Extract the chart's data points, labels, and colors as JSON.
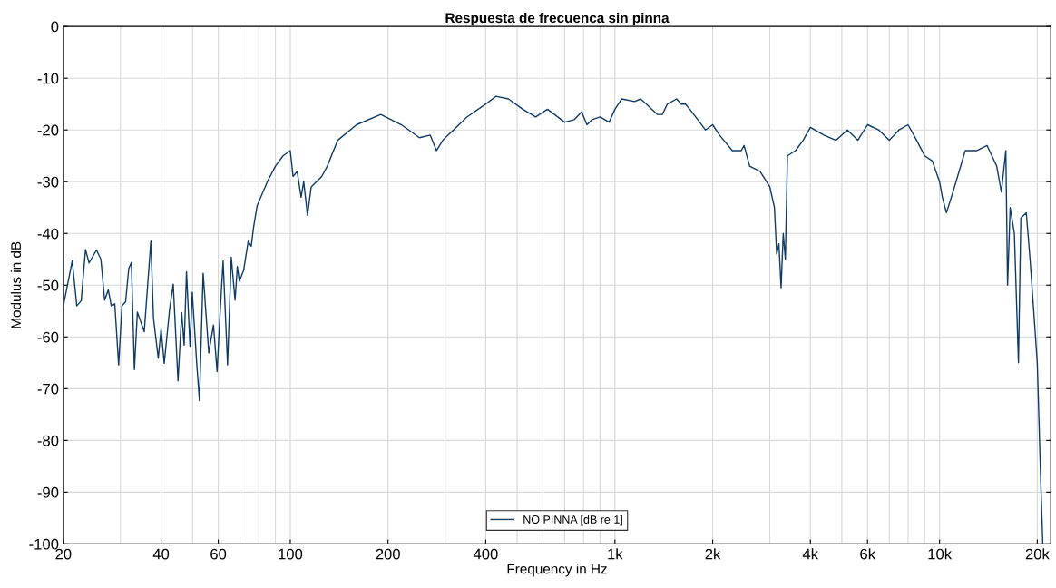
{
  "chart_data": {
    "type": "line",
    "title": "Respuesta de frecuenca sin pinna",
    "xlabel": "Frequency in Hz",
    "ylabel": "Modulus in dB",
    "log": "x",
    "grid": true,
    "legend": "bottom",
    "marker": "none",
    "line_style": "solid",
    "xlim": [
      20,
      22000
    ],
    "xticks": [
      20,
      40,
      60,
      100,
      200,
      400,
      {
        "value": 1000,
        "label": "1k"
      },
      {
        "value": 2000,
        "label": "2k"
      },
      {
        "value": 4000,
        "label": "4k"
      },
      {
        "value": 6000,
        "label": "6k"
      },
      {
        "value": 10000,
        "label": "10k"
      },
      {
        "value": 20000,
        "label": "20k"
      }
    ],
    "ylim": [
      -100,
      0
    ],
    "yticks": [
      -100,
      -90,
      -80,
      -70,
      -60,
      -50,
      -40,
      -30,
      -20,
      -10,
      0
    ],
    "series": [
      {
        "name": "NO PINNA [dB re 1]",
        "color": "#0e3a66",
        "x": [
          20,
          21.3,
          22,
          22.7,
          23.4,
          24,
          25.3,
          26.1,
          26.8,
          27.5,
          28.1,
          28.8,
          29.6,
          30.3,
          31.1,
          31.8,
          32.4,
          33.1,
          33.8,
          35.5,
          37.2,
          37.9,
          39.2,
          40,
          40.9,
          42.5,
          43.6,
          45.1,
          46.3,
          47.1,
          47.9,
          49.1,
          49.9,
          51.5,
          52.5,
          53.9,
          56.1,
          58,
          59.5,
          60.7,
          62.1,
          64.1,
          65.8,
          67.6,
          68.7,
          69.7,
          71.8,
          74.2,
          75.8,
          77.1,
          79,
          85,
          90,
          95,
          100,
          102,
          105,
          108,
          110,
          113,
          116,
          125,
          130,
          140,
          160,
          190,
          220,
          250,
          270,
          282,
          295,
          350,
          400,
          430,
          470,
          520,
          570,
          620,
          700,
          750,
          790,
          820,
          850,
          900,
          960,
          1000,
          1050,
          1150,
          1200,
          1250,
          1300,
          1350,
          1400,
          1450,
          1550,
          1600,
          1650,
          1700,
          1800,
          1900,
          2000,
          2100,
          2300,
          2450,
          2500,
          2600,
          2800,
          3000,
          3100,
          3150,
          3200,
          3250,
          3300,
          3350,
          3400,
          3600,
          3800,
          4000,
          4400,
          4800,
          5200,
          5600,
          6000,
          6500,
          7000,
          7500,
          8000,
          8500,
          9000,
          9500,
          10000,
          10200,
          10500,
          11000,
          12000,
          13000,
          14000,
          15000,
          15500,
          16000,
          16200,
          16500,
          17000,
          17500,
          17800,
          18500,
          19000,
          19500,
          20000,
          20500,
          20800
        ],
        "values": [
          -54,
          -45.3,
          -54,
          -53,
          -43.1,
          -45.7,
          -43.2,
          -45,
          -52.9,
          -50.9,
          -54,
          -53.6,
          -65.4,
          -54,
          -53.2,
          -46.8,
          -45.6,
          -66.3,
          -55.2,
          -59,
          -41.5,
          -56.4,
          -64.1,
          -58.5,
          -65.1,
          -54.6,
          -49.8,
          -68.5,
          -55.3,
          -61.6,
          -47.4,
          -61.8,
          -51.4,
          -65.1,
          -72.3,
          -47.7,
          -63.1,
          -57.7,
          -66.7,
          -56.1,
          -45.3,
          -65.4,
          -44.6,
          -52.9,
          -46.4,
          -49.2,
          -47.2,
          -41.5,
          -42.5,
          -38.8,
          -34.7,
          -30,
          -27,
          -25,
          -24,
          -29,
          -28,
          -33,
          -30,
          -36.5,
          -31,
          -29,
          -27,
          -22,
          -19,
          -17,
          -19,
          -21.5,
          -21,
          -24,
          -22,
          -17.5,
          -15,
          -13.5,
          -14,
          -16,
          -17.5,
          -16,
          -18.5,
          -18,
          -16.5,
          -19,
          -18,
          -17.5,
          -18.5,
          -16,
          -14,
          -14.5,
          -14,
          -15,
          -16,
          -17,
          -17,
          -15,
          -14,
          -15,
          -15,
          -16,
          -18,
          -20,
          -19,
          -21,
          -24,
          -24,
          -23,
          -27,
          -28,
          -31,
          -35,
          -44,
          -42,
          -50.5,
          -40,
          -45,
          -25,
          -24,
          -22,
          -19.5,
          -21,
          -22,
          -20,
          -22,
          -19,
          -20,
          -22,
          -20,
          -19,
          -22,
          -25,
          -26,
          -30,
          -33,
          -36,
          -32,
          -24,
          -24,
          -23,
          -27,
          -32,
          -24,
          -50,
          -35,
          -40,
          -65,
          -37,
          -36,
          -45,
          -55,
          -65,
          -88,
          -100
        ]
      }
    ]
  }
}
